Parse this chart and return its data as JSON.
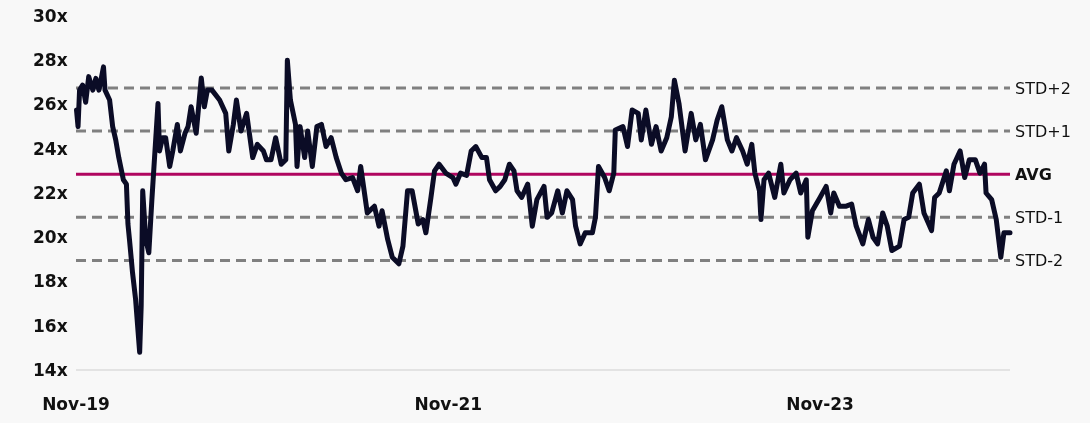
{
  "chart_data": {
    "type": "line",
    "xlim": [
      "2019-11-01",
      "2024-11-08"
    ],
    "xticks": [
      {
        "value": "2019-11-01",
        "label": "Nov-19"
      },
      {
        "value": "2021-11-01",
        "label": "Nov-21"
      },
      {
        "value": "2023-11-01",
        "label": "Nov-23"
      }
    ],
    "ylim": [
      14,
      30
    ],
    "yticks": [
      {
        "value": 14,
        "label": "14x"
      },
      {
        "value": 16,
        "label": "16x"
      },
      {
        "value": 18,
        "label": "18x"
      },
      {
        "value": 20,
        "label": "20x"
      },
      {
        "value": 22,
        "label": "22x"
      },
      {
        "value": 24,
        "label": "24x"
      },
      {
        "value": 26,
        "label": "26x"
      },
      {
        "value": 28,
        "label": "28x"
      },
      {
        "value": 30,
        "label": "30x"
      }
    ],
    "grid": false,
    "marker": "none",
    "line_style": "solid",
    "ref_lines": [
      {
        "axis": "y",
        "value": 26.75,
        "label": "STD+2",
        "color": "#808080",
        "line_style": "dashed"
      },
      {
        "axis": "y",
        "value": 24.8,
        "label": "STD+1",
        "color": "#808080",
        "line_style": "dashed"
      },
      {
        "axis": "y",
        "value": 22.85,
        "label": "AVG",
        "color": "#b0065f",
        "line_style": "solid"
      },
      {
        "axis": "y",
        "value": 20.9,
        "label": "STD-1",
        "color": "#808080",
        "line_style": "dashed"
      },
      {
        "axis": "y",
        "value": 18.95,
        "label": "STD-2",
        "color": "#808080",
        "line_style": "dashed"
      }
    ],
    "series": [
      {
        "color": "#0b0c26",
        "x": [
          "2019-11-02",
          "2019-11-05",
          "2019-11-08",
          "2019-11-14",
          "2019-11-20",
          "2019-11-26",
          "2019-12-04",
          "2019-12-10",
          "2019-12-16",
          "2019-12-25",
          "2019-12-28",
          "2020-01-06",
          "2020-01-12",
          "2020-01-18",
          "2020-01-24",
          "2020-02-02",
          "2020-02-08",
          "2020-02-11",
          "2020-02-14",
          "2020-02-20",
          "2020-02-26",
          "2020-03-05",
          "2020-03-08",
          "2020-03-11",
          "2020-03-17",
          "2020-03-23",
          "2020-03-29",
          "2020-04-10",
          "2020-04-13",
          "2020-04-19",
          "2020-04-25",
          "2020-05-03",
          "2020-05-09",
          "2020-05-18",
          "2020-05-24",
          "2020-06-02",
          "2020-06-08",
          "2020-06-14",
          "2020-06-24",
          "2020-07-04",
          "2020-07-10",
          "2020-07-16",
          "2020-07-25",
          "2020-08-09",
          "2020-08-21",
          "2020-08-27",
          "2020-09-05",
          "2020-09-11",
          "2020-09-20",
          "2020-10-01",
          "2020-10-13",
          "2020-10-22",
          "2020-11-03",
          "2020-11-09",
          "2020-11-18",
          "2020-11-27",
          "2020-12-08",
          "2020-12-17",
          "2020-12-20",
          "2020-12-26",
          "2021-01-05",
          "2021-01-08",
          "2021-01-14",
          "2021-01-23",
          "2021-01-29",
          "2021-02-07",
          "2021-02-16",
          "2021-02-25",
          "2021-03-06",
          "2021-03-16",
          "2021-03-26",
          "2021-04-05",
          "2021-04-14",
          "2021-04-27",
          "2021-05-07",
          "2021-05-13",
          "2021-05-26",
          "2021-06-09",
          "2021-06-18",
          "2021-06-24",
          "2021-07-05",
          "2021-07-14",
          "2021-07-27",
          "2021-08-04",
          "2021-08-13",
          "2021-08-22",
          "2021-09-03",
          "2021-09-12",
          "2021-09-18",
          "2021-09-28",
          "2021-10-05",
          "2021-10-14",
          "2021-10-27",
          "2021-11-10",
          "2021-11-16",
          "2021-11-25",
          "2021-12-07",
          "2021-12-16",
          "2021-12-25",
          "2022-01-06",
          "2022-01-15",
          "2022-01-21",
          "2022-02-02",
          "2022-02-11",
          "2022-02-20",
          "2022-03-01",
          "2022-03-10",
          "2022-03-16",
          "2022-03-25",
          "2022-04-06",
          "2022-04-15",
          "2022-04-24",
          "2022-05-08",
          "2022-05-14",
          "2022-05-23",
          "2022-06-04",
          "2022-06-13",
          "2022-06-22",
          "2022-07-03",
          "2022-07-09",
          "2022-07-18",
          "2022-07-28",
          "2022-08-11",
          "2022-08-17",
          "2022-08-23",
          "2022-09-04",
          "2022-09-13",
          "2022-09-22",
          "2022-09-25",
          "2022-10-10",
          "2022-10-19",
          "2022-10-28",
          "2022-11-09",
          "2022-11-15",
          "2022-11-24",
          "2022-12-05",
          "2022-12-14",
          "2022-12-24",
          "2023-01-04",
          "2023-01-13",
          "2023-01-19",
          "2023-01-28",
          "2023-02-09",
          "2023-02-21",
          "2023-03-02",
          "2023-03-11",
          "2023-03-21",
          "2023-04-04",
          "2023-04-13",
          "2023-04-22",
          "2023-05-03",
          "2023-05-12",
          "2023-05-21",
          "2023-06-02",
          "2023-06-11",
          "2023-06-20",
          "2023-06-26",
          "2023-07-05",
          "2023-07-08",
          "2023-07-14",
          "2023-07-23",
          "2023-08-04",
          "2023-08-16",
          "2023-08-22",
          "2023-09-03",
          "2023-09-15",
          "2023-09-24",
          "2023-10-05",
          "2023-10-08",
          "2023-10-17",
          "2023-11-01",
          "2023-11-13",
          "2023-11-22",
          "2023-11-28",
          "2023-12-09",
          "2023-12-21",
          "2024-01-02",
          "2024-01-11",
          "2024-01-24",
          "2024-02-04",
          "2024-02-13",
          "2024-02-22",
          "2024-03-03",
          "2024-03-12",
          "2024-03-21",
          "2024-04-05",
          "2024-04-14",
          "2024-04-23",
          "2024-05-01",
          "2024-05-14",
          "2024-05-23",
          "2024-06-07",
          "2024-06-13",
          "2024-06-22",
          "2024-07-06",
          "2024-07-12",
          "2024-07-21",
          "2024-08-02",
          "2024-08-11",
          "2024-08-20",
          "2024-09-01",
          "2024-09-10",
          "2024-09-19",
          "2024-09-22",
          "2024-10-03",
          "2024-10-12",
          "2024-10-21",
          "2024-10-27",
          "2024-11-08"
        ],
        "values": [
          25.75,
          25.0,
          26.65,
          26.88,
          26.1,
          27.26,
          26.65,
          27.18,
          26.65,
          27.7,
          26.65,
          26.2,
          25.0,
          24.4,
          23.6,
          22.6,
          22.4,
          20.6,
          19.9,
          18.4,
          17.2,
          14.8,
          16.9,
          22.1,
          19.9,
          19.3,
          21.7,
          26.05,
          23.9,
          24.5,
          24.5,
          23.2,
          23.9,
          25.1,
          23.9,
          24.7,
          25.0,
          25.9,
          24.7,
          27.2,
          25.9,
          26.65,
          26.65,
          26.2,
          25.6,
          23.9,
          25.1,
          26.2,
          24.8,
          25.6,
          23.6,
          24.2,
          23.9,
          23.5,
          23.5,
          24.5,
          23.3,
          23.5,
          28.0,
          26.2,
          25.1,
          23.2,
          25.0,
          23.6,
          24.8,
          23.2,
          25.0,
          25.1,
          24.1,
          24.5,
          23.6,
          22.9,
          22.6,
          22.7,
          22.1,
          23.2,
          21.1,
          21.4,
          20.5,
          21.2,
          19.9,
          19.1,
          18.8,
          19.6,
          22.1,
          22.1,
          20.6,
          20.8,
          20.2,
          21.8,
          23.0,
          23.3,
          22.9,
          22.7,
          22.4,
          22.9,
          22.8,
          23.9,
          24.1,
          23.6,
          23.6,
          22.6,
          22.1,
          22.3,
          22.6,
          23.3,
          23.0,
          22.1,
          21.8,
          22.4,
          20.5,
          21.7,
          22.3,
          20.9,
          21.1,
          22.1,
          21.1,
          22.1,
          21.7,
          20.5,
          19.7,
          20.2,
          20.2,
          20.9,
          23.2,
          22.7,
          22.1,
          22.9,
          24.85,
          25.0,
          24.1,
          25.75,
          25.6,
          24.4,
          25.75,
          24.2,
          25.0,
          23.9,
          24.5,
          25.45,
          27.1,
          26.05,
          23.9,
          25.6,
          24.4,
          25.1,
          23.5,
          24.4,
          25.3,
          25.9,
          24.4,
          23.9,
          24.5,
          23.9,
          23.3,
          24.2,
          22.9,
          22.1,
          20.8,
          22.6,
          22.9,
          21.8,
          23.3,
          22.0,
          22.6,
          22.9,
          22.0,
          22.6,
          20.0,
          21.2,
          21.8,
          22.3,
          21.1,
          22.0,
          21.4,
          21.4,
          21.5,
          20.5,
          19.7,
          20.8,
          20.0,
          19.7,
          21.1,
          20.5,
          19.4,
          19.6,
          20.8,
          20.9,
          22.0,
          22.4,
          21.1,
          20.3,
          21.8,
          22.0,
          23.0,
          22.1,
          23.3,
          23.9,
          22.7,
          23.5,
          23.5,
          22.9,
          23.3,
          22.0,
          21.7,
          20.8,
          19.1,
          20.2,
          20.2
        ]
      }
    ]
  }
}
